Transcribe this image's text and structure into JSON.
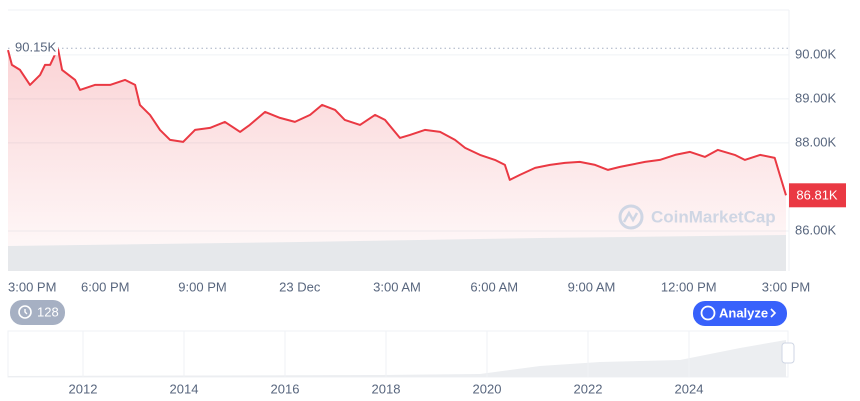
{
  "chart_data": {
    "type": "line",
    "x": [
      0,
      0.12,
      0.37,
      0.68,
      0.99,
      1.14,
      1.3,
      1.54,
      1.67,
      2.07,
      2.22,
      2.68,
      3.15,
      3.61,
      3.92,
      4.07,
      4.38,
      4.69,
      5.0,
      5.4,
      5.77,
      6.23,
      6.69,
      7.16,
      7.46,
      7.93,
      8.39,
      8.85,
      9.32,
      9.69,
      10.09,
      10.39,
      10.86,
      11.32,
      11.63,
      12.09,
      12.4,
      12.86,
      13.33,
      13.79,
      14.1,
      14.56,
      15.02,
      15.33,
      15.48,
      15.79,
      16.26,
      16.72,
      17.18,
      17.64,
      18.11,
      18.51,
      18.88,
      19.19,
      19.65,
      20.11,
      20.58,
      21.04,
      21.5,
      21.9,
      22.42,
      22.73,
      23.2,
      23.65,
      23.81,
      24
    ],
    "series": [
      {
        "color": "#ea3943",
        "values": [
          90110,
          89773,
          89659,
          89318,
          89545,
          89773,
          89773,
          90150,
          89659,
          89432,
          89205,
          89318,
          89318,
          89432,
          89318,
          88864,
          88636,
          88295,
          88068,
          88023,
          88295,
          88341,
          88477,
          88250,
          88409,
          88705,
          88568,
          88477,
          88636,
          88864,
          88750,
          88523,
          88409,
          88636,
          88523,
          88114,
          88182,
          88295,
          88250,
          88068,
          87886,
          87727,
          87614,
          87500,
          87159,
          87273,
          87432,
          87500,
          87545,
          87568,
          87500,
          87386,
          87455,
          87500,
          87568,
          87614,
          87727,
          87795,
          87682,
          87841,
          87727,
          87614,
          87727,
          87659,
          87273,
          86810
        ]
      }
    ],
    "xlim": [
      0,
      24
    ],
    "xticks": [
      {
        "value": 0,
        "label": "3:00 PM"
      },
      {
        "value": 3,
        "label": "6:00 PM"
      },
      {
        "value": 6,
        "label": "9:00 PM"
      },
      {
        "value": 9,
        "label": "23 Dec"
      },
      {
        "value": 12,
        "label": "3:00 AM"
      },
      {
        "value": 15,
        "label": "6:00 AM"
      },
      {
        "value": 18,
        "label": "9:00 AM"
      },
      {
        "value": 21,
        "label": "12:00 PM"
      },
      {
        "value": 24,
        "label": "3:00 PM"
      }
    ],
    "ylim": [
      85090,
      91020
    ],
    "yticks": [
      {
        "value": 86000,
        "label": "86.00K"
      },
      {
        "value": 88000,
        "label": "88.00K"
      },
      {
        "value": 89000,
        "label": "89.00K"
      },
      {
        "value": 90000,
        "label": "90.00K"
      }
    ],
    "grid": true,
    "annotations": [
      {
        "label": "90.15K",
        "value": 90150
      },
      {
        "label": "86.81K",
        "value": 86810
      }
    ]
  },
  "ui": {
    "watermark": "CoinMarketCap",
    "badge": "128",
    "button": "Analyze",
    "navigator_years": [
      "2012",
      "2014",
      "2016",
      "2018",
      "2020",
      "2022",
      "2024"
    ]
  }
}
